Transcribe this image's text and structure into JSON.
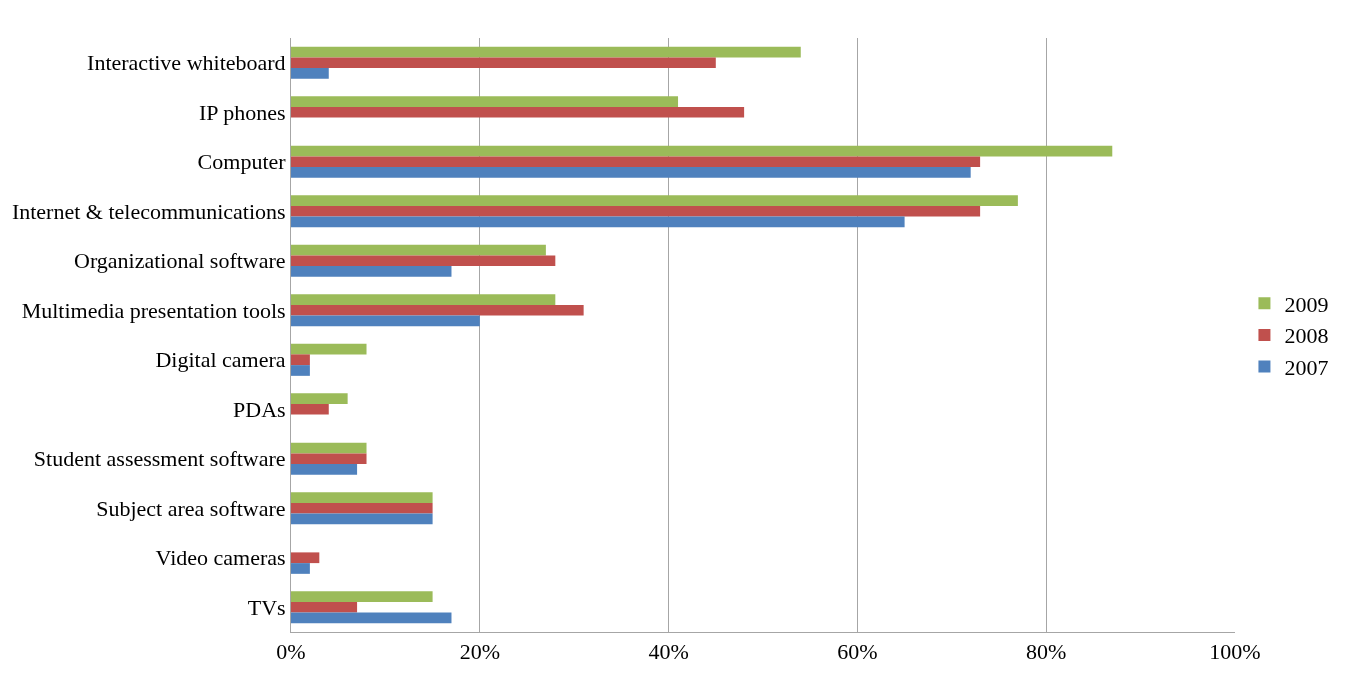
{
  "chart_data": {
    "type": "bar",
    "orientation": "horizontal",
    "categories": [
      "Interactive whiteboard",
      "IP phones",
      "Computer",
      "Internet & telecommunications",
      "Organizational software",
      "Multimedia presentation tools",
      "Digital camera",
      "PDAs",
      "Student assessment software",
      "Subject area software",
      "Video cameras",
      "TVs"
    ],
    "series": [
      {
        "name": "2009",
        "color": "#9bbb59",
        "values": [
          54,
          41,
          87,
          77,
          27,
          28,
          8,
          6,
          8,
          15,
          null,
          15
        ]
      },
      {
        "name": "2008",
        "color": "#c0504d",
        "values": [
          45,
          48,
          73,
          73,
          28,
          31,
          2,
          4,
          8,
          15,
          3,
          7
        ]
      },
      {
        "name": "2007",
        "color": "#4f81bd",
        "values": [
          4,
          null,
          72,
          65,
          17,
          20,
          2,
          null,
          7,
          15,
          2,
          17
        ]
      }
    ],
    "xlim": [
      0,
      100
    ],
    "xticks": [
      {
        "value": 0,
        "label": "0%"
      },
      {
        "value": 20,
        "label": "20%"
      },
      {
        "value": 40,
        "label": "40%"
      },
      {
        "value": 60,
        "label": "60%"
      },
      {
        "value": 80,
        "label": "80%"
      },
      {
        "value": 100,
        "label": "100%"
      }
    ],
    "grid": "x",
    "legend": "right"
  }
}
